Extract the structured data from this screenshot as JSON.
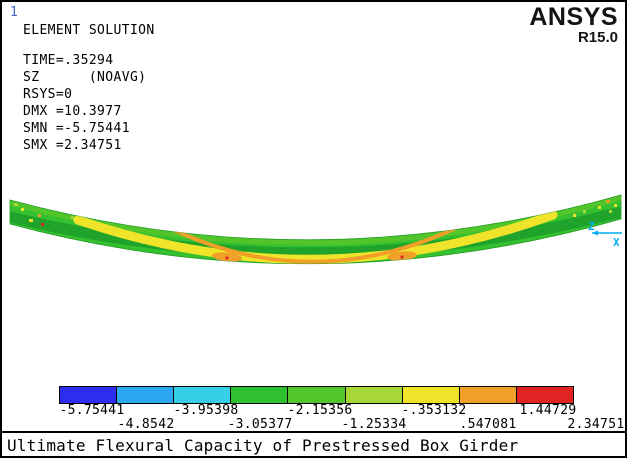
{
  "header": {
    "plot_number": "1",
    "solution_type": "ELEMENT SOLUTION",
    "info_lines": [
      "TIME=.35294",
      "SZ      (NOAVG)",
      "RSYS=0",
      "DMX =10.3977",
      "SMN =-5.75441",
      "SMX =2.34751"
    ]
  },
  "logo": {
    "brand": "ANSYS",
    "version": "R15.0"
  },
  "triad": {
    "z_label": "Z",
    "x_label": "X",
    "axis_color": "#00AEEF"
  },
  "legend": {
    "bands": [
      "#2D2DF0",
      "#2DA8F0",
      "#35D0E8",
      "#2FC02F",
      "#52C52A",
      "#A8D838",
      "#F0E42A",
      "#F0A028",
      "#E02424"
    ],
    "values_top": [
      "-5.75441",
      "-3.95398",
      "-2.15356",
      "-.353132",
      "1.44729"
    ],
    "values_bottom": [
      "-4.8542",
      "-3.05377",
      "-1.25334",
      ".547081",
      "2.34751"
    ]
  },
  "caption": "Ultimate Flexural Capacity of Prestressed Box Girder",
  "colors": {
    "plot_number": "#3E64C8",
    "text": "#000000",
    "background": "#FFFFFF"
  }
}
